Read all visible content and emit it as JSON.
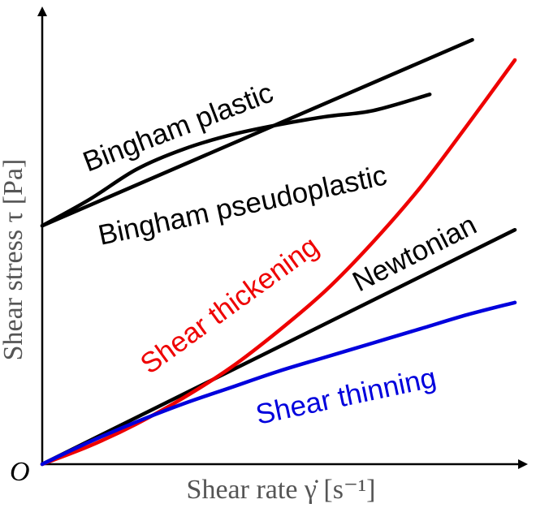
{
  "chart_data": {
    "type": "line",
    "title": "",
    "xlabel": "Shear rate γ̇ [s⁻¹]",
    "ylabel": "Shear stress τ [Pa]",
    "origin_label": "O",
    "xlim": [
      0,
      10
    ],
    "ylim": [
      0,
      10
    ],
    "grid": false,
    "legend": "none (inline curve labels)",
    "series": [
      {
        "name": "Bingham plastic",
        "key": "bingham_plastic",
        "color": "#000000",
        "x": [
          0,
          9.1
        ],
        "y": [
          5.9,
          10.5
        ]
      },
      {
        "name": "Bingham pseudoplastic",
        "key": "bingham_pseudoplastic",
        "color": "#000000",
        "x": [
          0,
          1,
          2,
          3,
          4,
          5,
          6,
          7,
          8.2
        ],
        "y": [
          5.9,
          6.55,
          7.3,
          7.8,
          8.15,
          8.4,
          8.6,
          8.75,
          9.15
        ]
      },
      {
        "name": "Newtonian",
        "key": "newtonian",
        "color": "#000000",
        "x": [
          0,
          10
        ],
        "y": [
          0,
          5.8
        ]
      },
      {
        "name": "Shear thickening",
        "key": "shear_thickening",
        "color": "#ee0000",
        "x": [
          0,
          1,
          2,
          3,
          4,
          5,
          6,
          7,
          8,
          9,
          10
        ],
        "y": [
          0,
          0.45,
          1.0,
          1.65,
          2.4,
          3.3,
          4.3,
          5.5,
          6.85,
          8.4,
          10.0
        ]
      },
      {
        "name": "Shear thinning",
        "key": "shear_thinning",
        "color": "#0000dd",
        "x": [
          0,
          1,
          2,
          3,
          4,
          5,
          6,
          7,
          8,
          9,
          10
        ],
        "y": [
          0,
          0.55,
          1.05,
          1.5,
          1.9,
          2.3,
          2.65,
          3.0,
          3.35,
          3.7,
          4.0
        ]
      }
    ],
    "annotations": [
      {
        "key": "bingham_plastic",
        "text": "Bingham plastic",
        "color": "#000000"
      },
      {
        "key": "bingham_pseudoplastic",
        "text": "Bingham pseudoplastic",
        "color": "#000000"
      },
      {
        "key": "shear_thickening",
        "text": "Shear thickening",
        "color": "#ee0000"
      },
      {
        "key": "newtonian",
        "text": "Newtonian",
        "color": "#000000"
      },
      {
        "key": "shear_thinning",
        "text": "Shear thinning",
        "color": "#0000dd"
      }
    ]
  }
}
